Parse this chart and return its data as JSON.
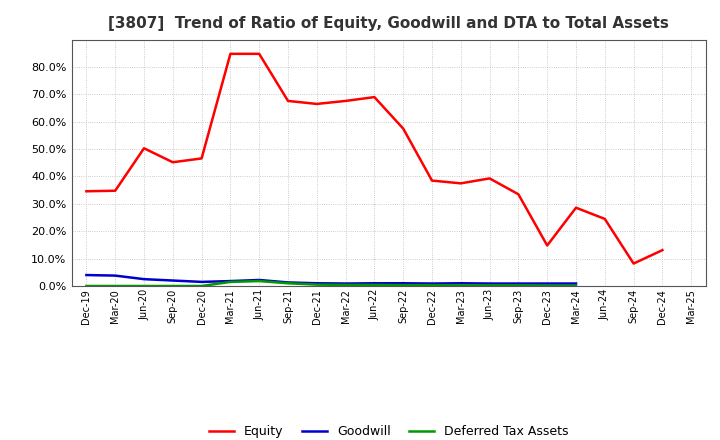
{
  "title": "[3807]  Trend of Ratio of Equity, Goodwill and DTA to Total Assets",
  "title_fontsize": 11,
  "title_color": "#333333",
  "background_color": "#ffffff",
  "plot_bg_color": "#ffffff",
  "grid_color": "#aaaaaa",
  "xlabels": [
    "Dec-19",
    "Mar-20",
    "Jun-20",
    "Sep-20",
    "Dec-20",
    "Mar-21",
    "Jun-21",
    "Sep-21",
    "Dec-21",
    "Mar-22",
    "Jun-22",
    "Sep-22",
    "Dec-22",
    "Mar-23",
    "Jun-23",
    "Sep-23",
    "Dec-23",
    "Mar-24",
    "Jun-24",
    "Sep-24",
    "Dec-24",
    "Mar-25"
  ],
  "equity": [
    0.346,
    0.348,
    0.503,
    0.452,
    0.466,
    0.848,
    0.848,
    0.676,
    0.665,
    0.676,
    0.69,
    0.575,
    0.385,
    0.375,
    0.393,
    0.335,
    0.148,
    0.286,
    0.245,
    0.082,
    0.131,
    null
  ],
  "goodwill": [
    0.04,
    0.038,
    0.025,
    0.02,
    0.015,
    0.018,
    0.022,
    0.013,
    0.01,
    0.009,
    0.01,
    0.01,
    0.009,
    0.01,
    0.009,
    0.009,
    0.009,
    0.009,
    null,
    null,
    null,
    null
  ],
  "dta": [
    0.0,
    0.0,
    0.0,
    0.0,
    0.0,
    0.015,
    0.018,
    0.01,
    0.005,
    0.004,
    0.004,
    0.003,
    0.003,
    0.002,
    0.002,
    0.002,
    0.001,
    0.001,
    null,
    null,
    null,
    null
  ],
  "equity_color": "#ff0000",
  "goodwill_color": "#0000cc",
  "dta_color": "#009900",
  "ylim": [
    0.0,
    0.9
  ],
  "yticks": [
    0.0,
    0.1,
    0.2,
    0.3,
    0.4,
    0.5,
    0.6,
    0.7,
    0.8
  ],
  "legend_labels": [
    "Equity",
    "Goodwill",
    "Deferred Tax Assets"
  ],
  "linewidth": 1.8,
  "spine_color": "#555555"
}
